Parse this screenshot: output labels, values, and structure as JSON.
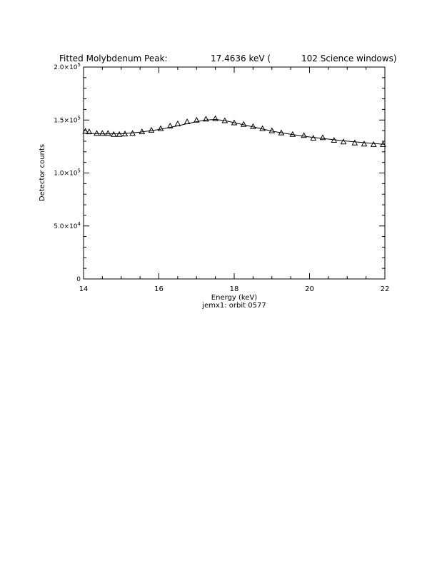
{
  "chart_data": {
    "type": "scatter",
    "title_left": "Fitted Molybdenum Peak:",
    "title_energy": "17.4636 keV (",
    "title_windows": "102 Science windows)",
    "xlabel": "Energy (keV)",
    "ylabel": "Detector counts",
    "subtitle": "jemx1: orbit 0577",
    "xlim": [
      14,
      22
    ],
    "ylim": [
      0,
      200000
    ],
    "xticks": [
      {
        "value": 14,
        "label": "14"
      },
      {
        "value": 16,
        "label": "16"
      },
      {
        "value": 18,
        "label": "18"
      },
      {
        "value": 20,
        "label": "20"
      },
      {
        "value": 22,
        "label": "22"
      }
    ],
    "yticks": [
      {
        "value": 0,
        "mantissa": "0",
        "exp": ""
      },
      {
        "value": 50000,
        "mantissa": "5.0×10",
        "exp": "4"
      },
      {
        "value": 100000,
        "mantissa": "1.0×10",
        "exp": "5"
      },
      {
        "value": 150000,
        "mantissa": "1.5×10",
        "exp": "5"
      },
      {
        "value": 200000,
        "mantissa": "2.0×10",
        "exp": "5"
      }
    ],
    "x_minor_per_major": 4,
    "y_minor_per_major": 5,
    "series": [
      {
        "marker": "triangle",
        "x": [
          14.05,
          14.15,
          14.35,
          14.5,
          14.65,
          14.8,
          14.95,
          15.1,
          15.3,
          15.55,
          15.8,
          16.05,
          16.3,
          16.5,
          16.75,
          17.0,
          17.25,
          17.5,
          17.75,
          18.0,
          18.25,
          18.5,
          18.75,
          19.0,
          19.25,
          19.55,
          19.85,
          20.1,
          20.35,
          20.65,
          20.9,
          21.2,
          21.45,
          21.7,
          21.95
        ],
        "y": [
          139500,
          139000,
          137500,
          137500,
          137500,
          136500,
          136500,
          137000,
          137500,
          139000,
          140500,
          142000,
          144500,
          146500,
          148500,
          150000,
          151000,
          151500,
          149500,
          147500,
          146000,
          144000,
          142000,
          140000,
          138000,
          136500,
          135500,
          133000,
          133500,
          131000,
          129500,
          128500,
          127500,
          127000,
          127000
        ]
      },
      {
        "marker": "line",
        "x": [
          14.0,
          14.5,
          15.0,
          15.5,
          16.0,
          16.5,
          17.0,
          17.25,
          17.5,
          17.75,
          18.0,
          18.5,
          19.0,
          19.5,
          20.0,
          20.5,
          21.0,
          21.5,
          22.0
        ],
        "y": [
          137500,
          137000,
          137000,
          138500,
          141000,
          144500,
          148500,
          150000,
          150500,
          149500,
          147500,
          143500,
          139500,
          136500,
          134000,
          132000,
          130000,
          128500,
          127000
        ]
      }
    ]
  }
}
